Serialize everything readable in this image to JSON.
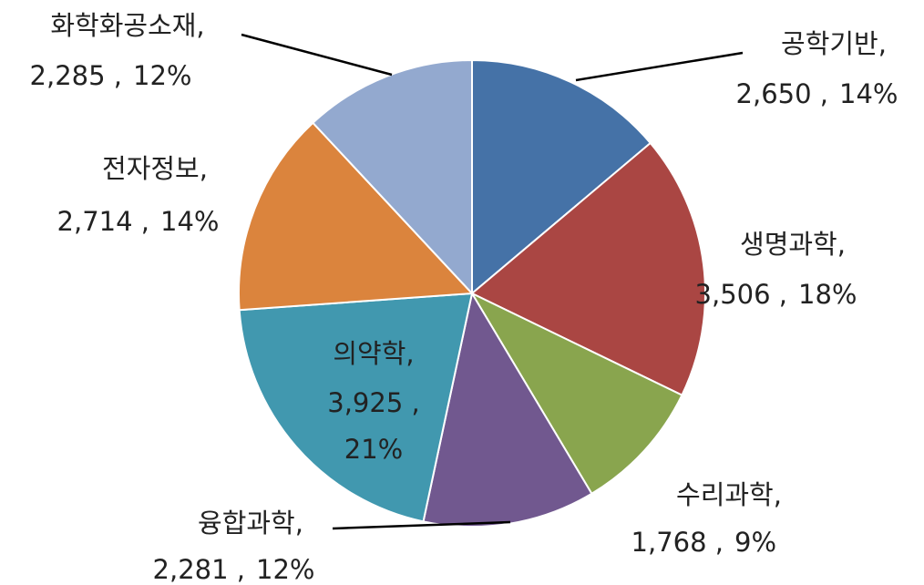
{
  "chart_data": {
    "type": "pie",
    "categories": [
      "공학기반,",
      "생명과학,",
      "수리과학,",
      "융합과학,",
      "의약학,",
      "전자정보,",
      "화학화공소재,"
    ],
    "values": [
      2650,
      3506,
      1768,
      2281,
      3925,
      2714,
      2285
    ],
    "value_labels": [
      "2,650 ,",
      "3,506 ,",
      "1,768 ,",
      "2,281 ,",
      "3,925 ,",
      "2,714 ,",
      "2,285 ,"
    ],
    "percentages": [
      14,
      18,
      9,
      12,
      21,
      14,
      12
    ],
    "percentage_labels": [
      "14%",
      "18%",
      "9%",
      "12%",
      "21%",
      "14%",
      "12%"
    ],
    "colors": [
      "#4572a7",
      "#aa4643",
      "#89a54e",
      "#71588f",
      "#4198af",
      "#db843d",
      "#93a9cf"
    ]
  }
}
